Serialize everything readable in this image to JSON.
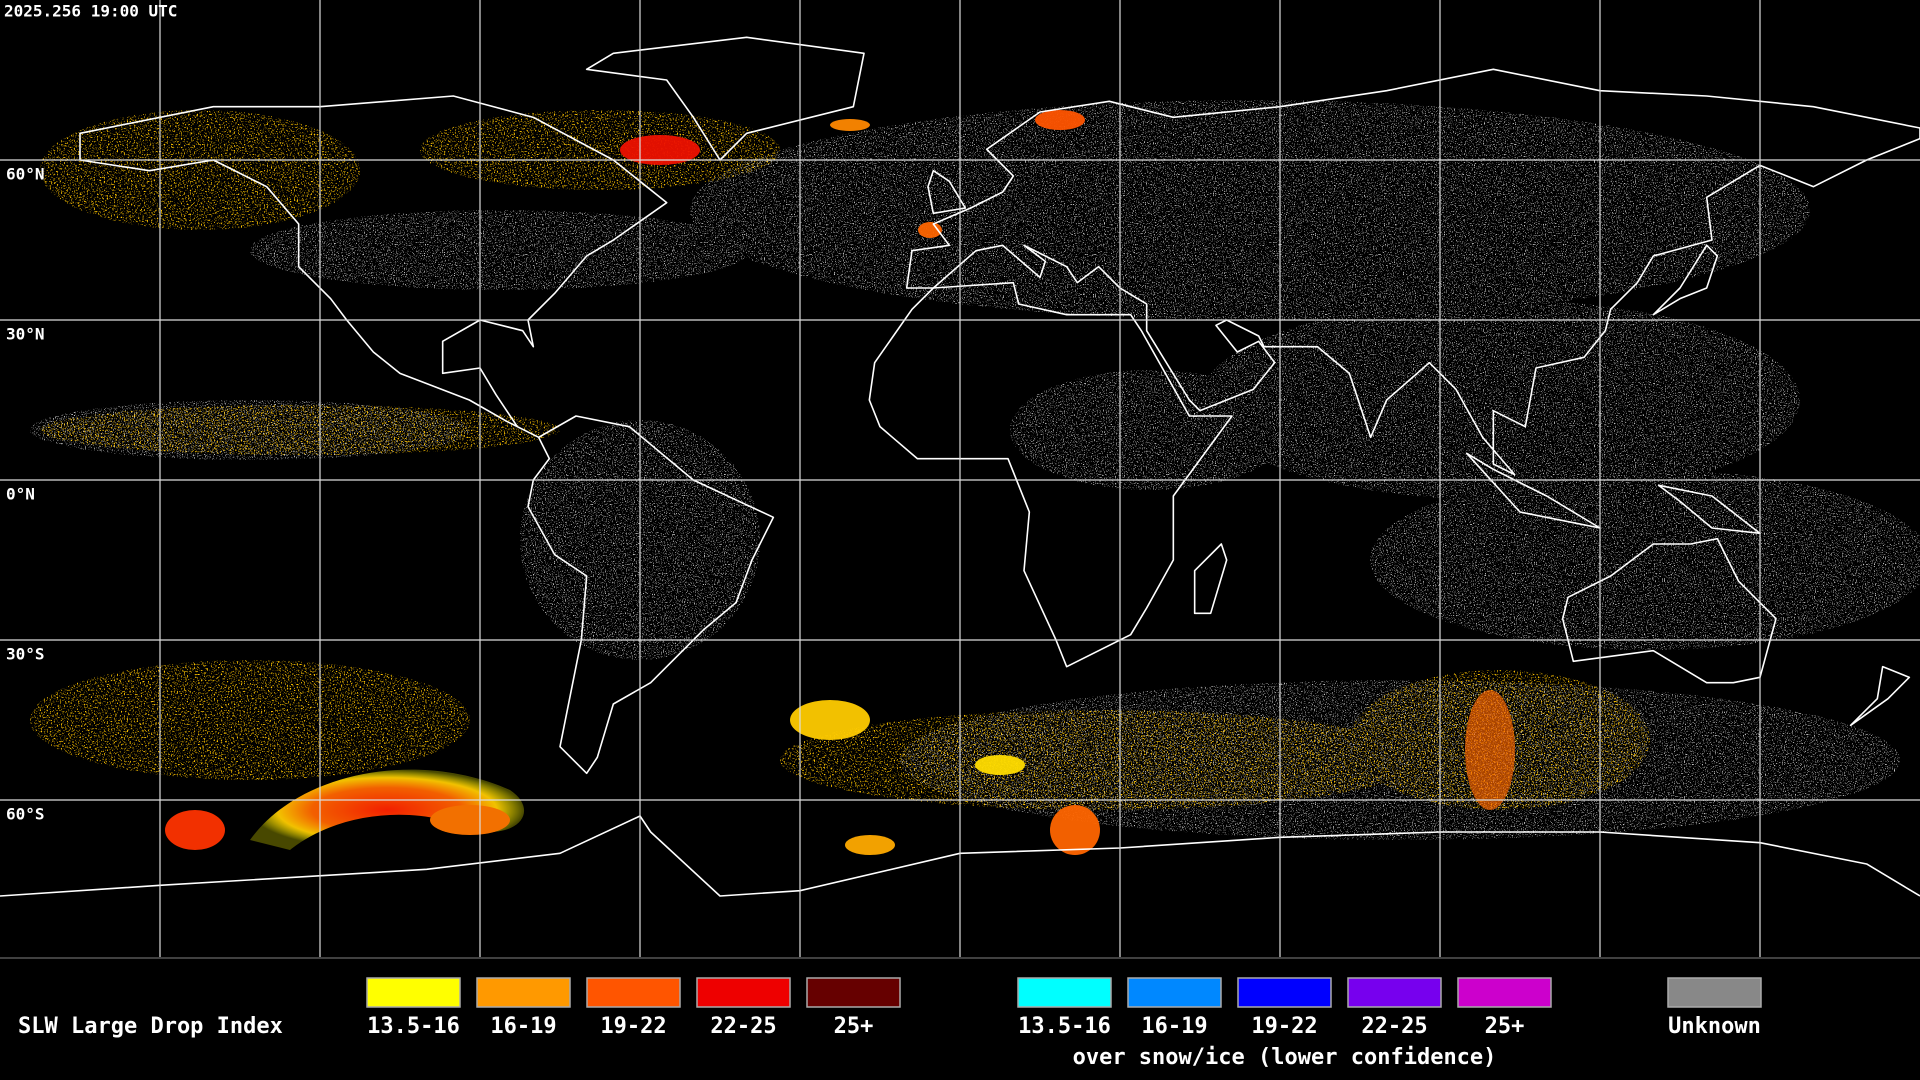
{
  "header": {
    "timestamp": "2025.256 19:00 UTC"
  },
  "grid": {
    "lat_labels": [
      "60°N",
      "30°N",
      "0°N",
      "30°S",
      "60°S"
    ]
  },
  "legend": {
    "title": "SLW Large Drop Index",
    "groups": [
      {
        "items": [
          {
            "label": "13.5-16",
            "color": "#ffff00"
          },
          {
            "label": "16-19",
            "color": "#ff9900"
          },
          {
            "label": "19-22",
            "color": "#ff5500"
          },
          {
            "label": "22-25",
            "color": "#ee0000"
          },
          {
            "label": "25+",
            "color": "#660000"
          }
        ]
      },
      {
        "subtitle": "over snow/ice (lower confidence)",
        "items": [
          {
            "label": "13.5-16",
            "color": "#00ffff"
          },
          {
            "label": "16-19",
            "color": "#0088ff"
          },
          {
            "label": "19-22",
            "color": "#0000ff"
          },
          {
            "label": "22-25",
            "color": "#7700ee"
          },
          {
            "label": "25+",
            "color": "#cc00cc"
          }
        ]
      }
    ],
    "unknown": {
      "label": "Unknown",
      "color": "#888888"
    }
  }
}
